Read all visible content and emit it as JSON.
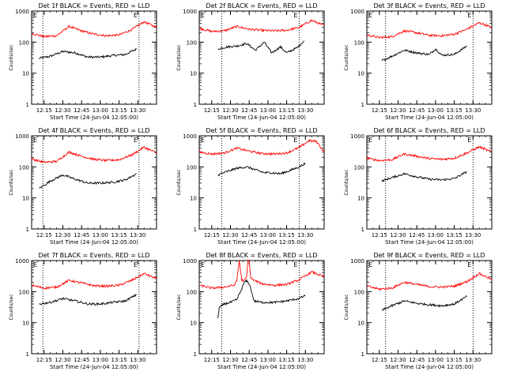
{
  "figure": {
    "ylabel": "Counts/sec",
    "xlabel": "Start Time (24-Jun-04 12:05:00)",
    "x_tick_labels": [
      "12:15",
      "12:30",
      "12:45",
      "13:00",
      "13:15",
      "13:30"
    ],
    "y_tick_labels": [
      "1",
      "10",
      "100",
      "1000"
    ],
    "marker_label": "E",
    "colors": {
      "events": "#000000",
      "lld": "#ff0000",
      "frame": "#000000"
    }
  },
  "chart_data": [
    {
      "type": "line",
      "title": "Det 1f BLACK = Events, RED = LLD",
      "xlabel": "Start Time (24-Jun-04 12:05:00)",
      "ylabel": "Counts/sec",
      "x_unit": "minutes after 12:05:00",
      "ylim": [
        1,
        1000
      ],
      "yscale": "log",
      "xlim": [
        0,
        100
      ],
      "marker_lines_x": [
        9,
        86
      ],
      "series": [
        {
          "name": "Events",
          "color": "#000000",
          "x": [
            6,
            15,
            25,
            35,
            45,
            55,
            65,
            75,
            84
          ],
          "y": [
            30,
            35,
            50,
            45,
            33,
            33,
            37,
            40,
            60
          ]
        },
        {
          "name": "LLD",
          "color": "#ff0000",
          "x": [
            0,
            10,
            20,
            30,
            40,
            50,
            60,
            70,
            80,
            90,
            100
          ],
          "y": [
            190,
            150,
            160,
            320,
            230,
            180,
            160,
            170,
            250,
            450,
            300
          ]
        }
      ]
    },
    {
      "type": "line",
      "title": "Det 2f BLACK = Events, RED = LLD",
      "xlabel": "Start Time (24-Jun-04 12:05:00)",
      "ylabel": "Counts/sec",
      "x_unit": "minutes after 12:05:00",
      "ylim": [
        1,
        1000
      ],
      "yscale": "log",
      "xlim": [
        0,
        100
      ],
      "marker_lines_x": [
        18,
        80
      ],
      "series": [
        {
          "name": "Events",
          "color": "#000000",
          "x": [
            15,
            22,
            30,
            38,
            45,
            52,
            58,
            65,
            70,
            78,
            84
          ],
          "y": [
            60,
            70,
            75,
            90,
            55,
            100,
            45,
            70,
            45,
            65,
            110
          ]
        },
        {
          "name": "LLD",
          "color": "#ff0000",
          "x": [
            0,
            10,
            20,
            30,
            40,
            50,
            60,
            70,
            80,
            90,
            100
          ],
          "y": [
            280,
            220,
            230,
            320,
            260,
            240,
            230,
            240,
            300,
            500,
            340
          ]
        }
      ]
    },
    {
      "type": "line",
      "title": "Det 3f BLACK = Events, RED = LLD",
      "xlabel": "Start Time (24-Jun-04 12:05:00)",
      "ylabel": "Counts/sec",
      "x_unit": "minutes after 12:05:00",
      "ylim": [
        1,
        1000
      ],
      "yscale": "log",
      "xlim": [
        0,
        100
      ],
      "marker_lines_x": [
        15,
        85
      ],
      "series": [
        {
          "name": "Events",
          "color": "#000000",
          "x": [
            12,
            20,
            30,
            40,
            50,
            55,
            60,
            70,
            80
          ],
          "y": [
            25,
            35,
            55,
            45,
            40,
            60,
            38,
            40,
            75
          ]
        },
        {
          "name": "LLD",
          "color": "#ff0000",
          "x": [
            0,
            10,
            20,
            30,
            40,
            50,
            60,
            70,
            80,
            90,
            100
          ],
          "y": [
            170,
            140,
            150,
            230,
            200,
            165,
            160,
            180,
            260,
            420,
            300
          ]
        }
      ]
    },
    {
      "type": "line",
      "title": "Det 4f BLACK = Events, RED = LLD",
      "xlabel": "Start Time (24-Jun-04 12:05:00)",
      "ylabel": "Counts/sec",
      "x_unit": "minutes after 12:05:00",
      "ylim": [
        1,
        1000
      ],
      "yscale": "log",
      "xlim": [
        0,
        100
      ],
      "marker_lines_x": [
        9,
        86
      ],
      "series": [
        {
          "name": "Events",
          "color": "#000000",
          "x": [
            6,
            15,
            25,
            35,
            45,
            55,
            65,
            75,
            84
          ],
          "y": [
            20,
            35,
            55,
            40,
            30,
            30,
            32,
            38,
            60
          ]
        },
        {
          "name": "LLD",
          "color": "#ff0000",
          "x": [
            0,
            10,
            20,
            30,
            40,
            50,
            60,
            70,
            80,
            90,
            100
          ],
          "y": [
            180,
            140,
            150,
            300,
            220,
            175,
            160,
            170,
            240,
            430,
            280
          ]
        }
      ]
    },
    {
      "type": "line",
      "title": "Det 5f BLACK = Events, RED = LLD",
      "xlabel": "Start Time (24-Jun-04 12:05:00)",
      "ylabel": "Counts/sec",
      "x_unit": "minutes after 12:05:00",
      "ylim": [
        1,
        1000
      ],
      "yscale": "log",
      "xlim": [
        0,
        100
      ],
      "marker_lines_x": [
        18,
        80
      ],
      "series": [
        {
          "name": "Events",
          "color": "#000000",
          "x": [
            15,
            22,
            30,
            38,
            45,
            52,
            58,
            65,
            72,
            80,
            85
          ],
          "y": [
            55,
            70,
            90,
            100,
            80,
            65,
            65,
            60,
            75,
            100,
            130
          ]
        },
        {
          "name": "LLD",
          "color": "#ff0000",
          "x": [
            0,
            10,
            20,
            30,
            40,
            50,
            60,
            70,
            80,
            88,
            94,
            100
          ],
          "y": [
            300,
            260,
            280,
            400,
            320,
            270,
            260,
            280,
            420,
            700,
            650,
            300
          ]
        }
      ]
    },
    {
      "type": "line",
      "title": "Det 6f BLACK = Events, RED = LLD",
      "xlabel": "Start Time (24-Jun-04 12:05:00)",
      "ylabel": "Counts/sec",
      "x_unit": "minutes after 12:05:00",
      "ylim": [
        1,
        1000
      ],
      "yscale": "log",
      "xlim": [
        0,
        100
      ],
      "marker_lines_x": [
        15,
        85
      ],
      "series": [
        {
          "name": "Events",
          "color": "#000000",
          "x": [
            12,
            20,
            30,
            40,
            50,
            60,
            70,
            80
          ],
          "y": [
            35,
            45,
            60,
            48,
            40,
            38,
            42,
            70
          ]
        },
        {
          "name": "LLD",
          "color": "#ff0000",
          "x": [
            0,
            10,
            20,
            30,
            40,
            50,
            60,
            70,
            80,
            90,
            100
          ],
          "y": [
            190,
            160,
            170,
            260,
            220,
            185,
            175,
            190,
            280,
            440,
            300
          ]
        }
      ]
    },
    {
      "type": "line",
      "title": "Det 7f BLACK = Events, RED = LLD",
      "xlabel": "Start Time (24-Jun-04 12:05:00)",
      "ylabel": "Counts/sec",
      "x_unit": "minutes after 12:05:00",
      "ylim": [
        1,
        1000
      ],
      "yscale": "log",
      "xlim": [
        0,
        100
      ],
      "marker_lines_x": [
        9,
        86
      ],
      "series": [
        {
          "name": "Events",
          "color": "#000000",
          "x": [
            6,
            15,
            25,
            35,
            45,
            55,
            65,
            75,
            84
          ],
          "y": [
            40,
            45,
            60,
            50,
            40,
            40,
            45,
            50,
            80
          ]
        },
        {
          "name": "LLD",
          "color": "#ff0000",
          "x": [
            0,
            10,
            20,
            30,
            40,
            50,
            60,
            70,
            80,
            90,
            100
          ],
          "y": [
            160,
            130,
            140,
            230,
            190,
            155,
            150,
            160,
            230,
            380,
            260
          ]
        }
      ]
    },
    {
      "type": "line",
      "title": "Det 8f BLACK = Events, RED = LLD",
      "xlabel": "Start Time (24-Jun-04 12:05:00)",
      "ylabel": "Counts/sec",
      "x_unit": "minutes after 12:05:00",
      "ylim": [
        1,
        1000
      ],
      "yscale": "log",
      "xlim": [
        0,
        100
      ],
      "marker_lines_x": [
        18,
        80
      ],
      "series": [
        {
          "name": "Events",
          "color": "#000000",
          "x": [
            15,
            16,
            20,
            25,
            30,
            34,
            36,
            38,
            40,
            44,
            50,
            60,
            70,
            80,
            85
          ],
          "y": [
            15,
            30,
            40,
            45,
            55,
            120,
            200,
            220,
            180,
            50,
            45,
            45,
            50,
            60,
            75
          ]
        },
        {
          "name": "LLD",
          "color": "#ff0000",
          "x": [
            0,
            10,
            20,
            28,
            30,
            32,
            34,
            36,
            38,
            39,
            40,
            41,
            43,
            50,
            60,
            70,
            80,
            90,
            100
          ],
          "y": [
            160,
            130,
            140,
            160,
            220,
            1000,
            240,
            220,
            300,
            1000,
            1000,
            300,
            240,
            180,
            160,
            170,
            240,
            430,
            300
          ]
        }
      ]
    },
    {
      "type": "line",
      "title": "Det 9f BLACK = Events, RED = LLD",
      "xlabel": "Start Time (24-Jun-04 12:05:00)",
      "ylabel": "Counts/sec",
      "x_unit": "minutes after 12:05:00",
      "ylim": [
        1,
        1000
      ],
      "yscale": "log",
      "xlim": [
        0,
        100
      ],
      "marker_lines_x": [
        15,
        85
      ],
      "series": [
        {
          "name": "Events",
          "color": "#000000",
          "x": [
            12,
            20,
            30,
            40,
            50,
            60,
            70,
            80
          ],
          "y": [
            25,
            35,
            50,
            42,
            38,
            35,
            40,
            70
          ]
        },
        {
          "name": "LLD",
          "color": "#ff0000",
          "x": [
            0,
            10,
            20,
            30,
            40,
            50,
            60,
            70,
            80,
            90,
            100
          ],
          "y": [
            150,
            120,
            130,
            200,
            170,
            145,
            140,
            150,
            210,
            380,
            250
          ]
        }
      ]
    }
  ]
}
